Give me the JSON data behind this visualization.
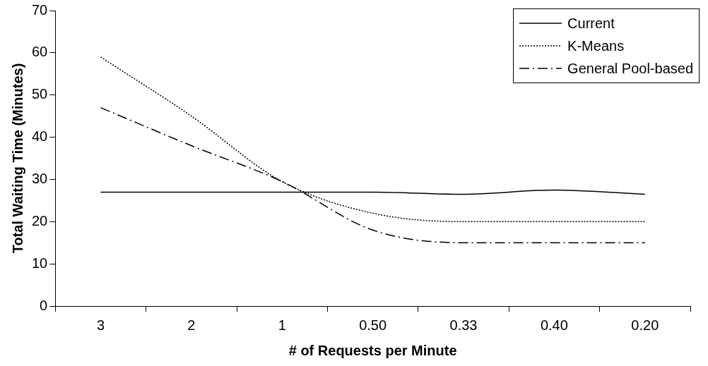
{
  "chart_data": {
    "type": "line",
    "xlabel": "# of Requests per Minute",
    "ylabel": "Total Waiting Time (Minutes)",
    "categories": [
      "3",
      "2",
      "1",
      "0.50",
      "0.33",
      "0.40",
      "0.20"
    ],
    "series": [
      {
        "name": "Current",
        "color": "#000000",
        "line_style": "solid",
        "values": [
          27,
          27,
          27,
          27,
          26.5,
          27.5,
          26.5
        ]
      },
      {
        "name": "K-Means",
        "color": "#000000",
        "line_style": "dotted",
        "values": [
          59,
          45,
          29.5,
          22,
          20,
          20,
          20
        ]
      },
      {
        "name": "General Pool-based",
        "color": "#000000",
        "line_style": "dashed",
        "values": [
          47,
          38,
          29.5,
          18,
          15,
          15,
          15
        ]
      }
    ],
    "ylim": [
      0,
      70
    ],
    "yticks": [
      0,
      10,
      20,
      30,
      40,
      50,
      60,
      70
    ],
    "grid": false,
    "legend": "top right",
    "marker": "none"
  }
}
